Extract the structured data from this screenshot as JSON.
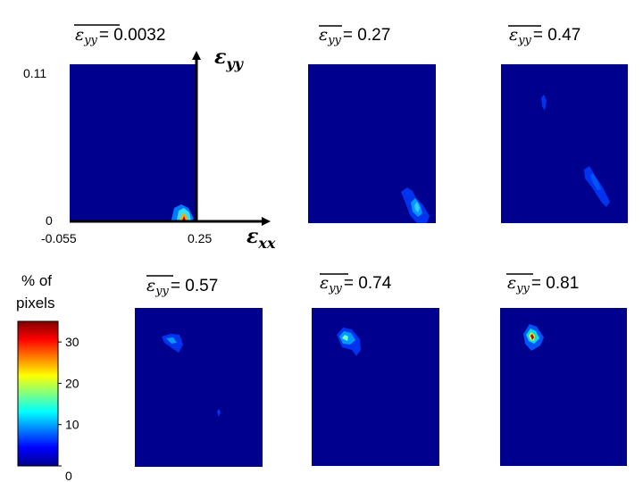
{
  "chart_data": {
    "type": "heatmap",
    "panels": [
      {
        "epsilon_symbol": "ε",
        "subscript": "yy",
        "value_text": "= 0.0032",
        "mean_eps_yy": 0.0032,
        "blobs": [
          {
            "x": 0.245,
            "y": 0.002,
            "peak": 32
          }
        ]
      },
      {
        "epsilon_symbol": "ε",
        "subscript": "yy",
        "value_text": "= 0.27",
        "mean_eps_yy": 0.27,
        "blobs": [
          {
            "x": 0.22,
            "y": 0.01,
            "peak": 9
          }
        ]
      },
      {
        "epsilon_symbol": "ε",
        "subscript": "yy",
        "value_text": "= 0.47",
        "mean_eps_yy": 0.47,
        "blobs": [
          {
            "x": 0.05,
            "y": 0.06,
            "peak": 5
          },
          {
            "x": 0.19,
            "y": 0.03,
            "peak": 6
          }
        ]
      },
      {
        "epsilon_symbol": "ε",
        "subscript": "yy",
        "value_text": "= 0.57",
        "mean_eps_yy": 0.57,
        "blobs": [
          {
            "x": 0.09,
            "y": 0.08,
            "peak": 6
          },
          {
            "x": 0.2,
            "y": 0.02,
            "peak": 3
          }
        ]
      },
      {
        "epsilon_symbol": "ε",
        "subscript": "yy",
        "value_text": "= 0.74",
        "mean_eps_yy": 0.74,
        "blobs": [
          {
            "x": 0.09,
            "y": 0.08,
            "peak": 14
          }
        ]
      },
      {
        "epsilon_symbol": "ε",
        "subscript": "yy",
        "value_text": "= 0.81",
        "mean_eps_yy": 0.81,
        "blobs": [
          {
            "x": 0.07,
            "y": 0.085,
            "peak": 27
          }
        ]
      }
    ],
    "x_axis": {
      "symbol": "ε",
      "subscript": "xx",
      "range": [
        -0.055,
        0.25
      ],
      "tick_labels": [
        "-0.055",
        "0.25"
      ]
    },
    "y_axis": {
      "symbol": "ε",
      "subscript": "yy",
      "range": [
        0,
        0.11
      ],
      "tick_labels": [
        "0",
        "0.11"
      ]
    },
    "colorbar": {
      "title_line1": "% of",
      "title_line2": "pixels",
      "range": [
        0,
        35
      ],
      "ticks": [
        {
          "value": 0,
          "label": "0"
        },
        {
          "value": 10,
          "label": "10"
        },
        {
          "value": 20,
          "label": "20"
        },
        {
          "value": 30,
          "label": "30"
        }
      ],
      "colormap": "jet"
    },
    "background_color": "#00008f"
  }
}
